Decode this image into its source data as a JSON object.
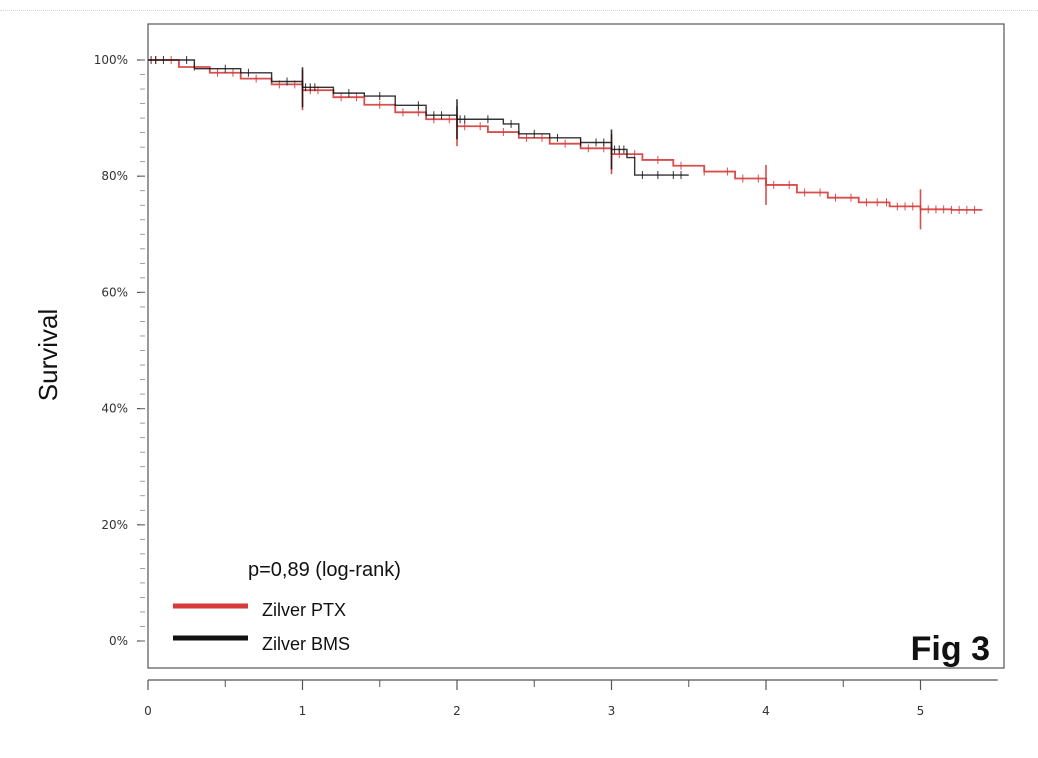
{
  "chart_data": {
    "type": "line",
    "title": "",
    "xlabel": "",
    "ylabel": "Survival",
    "xlim": [
      0,
      5.5
    ],
    "ylim": [
      0,
      100
    ],
    "x_ticks": [
      "0",
      "1",
      "2",
      "3",
      "4",
      "5"
    ],
    "y_ticks": [
      "0%",
      "20%",
      "40%",
      "60%",
      "80%",
      "100%"
    ],
    "grid": false,
    "legend_position": "bottom-left",
    "annotation": "p=0,89 (log-rank)",
    "figure_label": "Fig 3",
    "series": [
      {
        "name": "Zilver PTX",
        "color": "#d63a3a",
        "x": [
          0,
          0.2,
          0.4,
          0.6,
          0.8,
          1.0,
          1.2,
          1.4,
          1.6,
          1.8,
          2.0,
          2.2,
          2.4,
          2.6,
          2.8,
          3.0,
          3.2,
          3.4,
          3.6,
          3.8,
          4.0,
          4.2,
          4.4,
          4.6,
          4.8,
          5.0,
          5.2,
          5.4
        ],
        "y": [
          100,
          98.8,
          97.8,
          96.8,
          95.8,
          94.8,
          93.6,
          92.3,
          91,
          89.8,
          88.6,
          87.6,
          86.6,
          85.6,
          84.8,
          83.8,
          82.8,
          81.8,
          80.8,
          79.6,
          78.5,
          77.2,
          76.3,
          75.5,
          74.8,
          74.3,
          74.2,
          74.2
        ],
        "censor_x": [
          0.05,
          0.15,
          0.3,
          0.45,
          0.55,
          0.7,
          0.85,
          0.95,
          1.05,
          1.1,
          1.25,
          1.35,
          1.5,
          1.65,
          1.75,
          1.85,
          1.95,
          2.05,
          2.15,
          2.3,
          2.45,
          2.55,
          2.7,
          2.85,
          2.95,
          3.05,
          3.15,
          3.3,
          3.45,
          3.6,
          3.75,
          3.85,
          3.95,
          4.05,
          4.15,
          4.25,
          4.35,
          4.45,
          4.55,
          4.65,
          4.72,
          4.78,
          4.85,
          4.9,
          4.95,
          5.0,
          5.05,
          5.1,
          5.15,
          5.2,
          5.25,
          5.3,
          5.35
        ]
      },
      {
        "name": "Zilver BMS",
        "color": "#111111",
        "x": [
          0,
          0.3,
          0.6,
          0.8,
          1.0,
          1.2,
          1.4,
          1.6,
          1.7,
          1.8,
          2.0,
          2.1,
          2.3,
          2.4,
          2.6,
          2.8,
          3.0,
          3.1,
          3.15,
          3.5
        ],
        "y": [
          100,
          98.5,
          97.8,
          96.3,
          95.3,
          94.3,
          93.8,
          92.2,
          92.2,
          90.5,
          89.8,
          89.8,
          89,
          87.3,
          86.6,
          85.8,
          84.6,
          83.2,
          80.2,
          80.2
        ],
        "censor_x": [
          0.02,
          0.05,
          0.1,
          0.25,
          0.5,
          0.65,
          0.9,
          1.02,
          1.05,
          1.08,
          1.3,
          1.5,
          1.75,
          1.85,
          1.9,
          2.02,
          2.05,
          2.2,
          2.35,
          2.5,
          2.65,
          2.8,
          2.9,
          2.95,
          3.02,
          3.05,
          3.08,
          3.2,
          3.3,
          3.4,
          3.45
        ]
      }
    ]
  }
}
